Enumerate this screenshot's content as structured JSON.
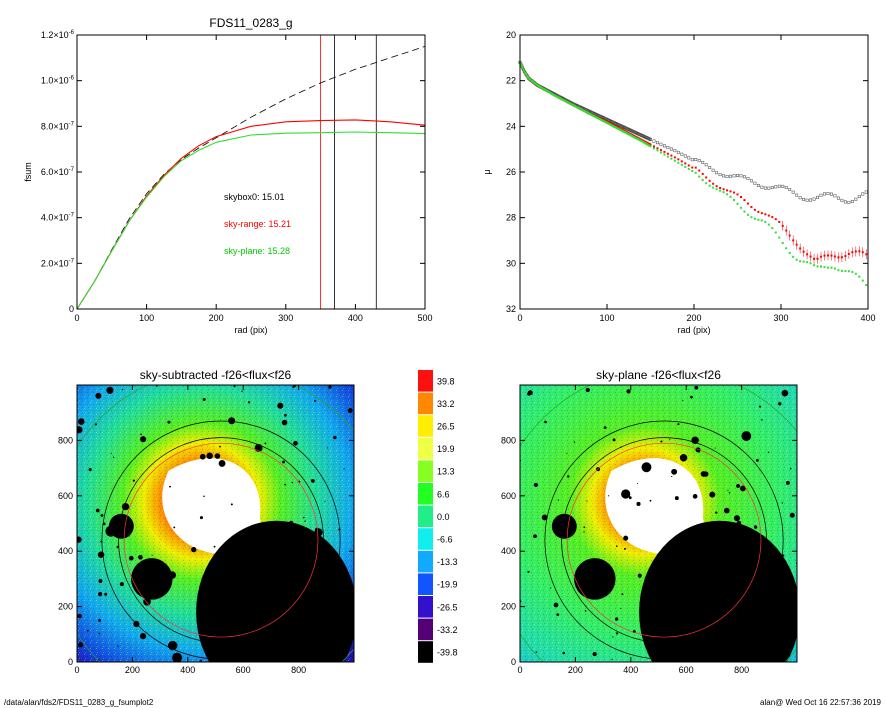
{
  "footer": {
    "path": "/data/alan/fds2/FDS11_0283_g_fsumplot2",
    "stamp": "alan@  Wed Oct 16 22:57:36 2019"
  },
  "chart_data": [
    {
      "type": "line",
      "title": "FDS11_0283_g",
      "xlabel": "rad (pix)",
      "ylabel": "fsum",
      "xlim": [
        0,
        500
      ],
      "ylim": [
        0,
        1.2e-06
      ],
      "xticks": [
        "0",
        "100",
        "200",
        "300",
        "400",
        "500"
      ],
      "yticks": [
        {
          "m": "0",
          "e": ""
        },
        {
          "m": "2.0×10",
          "e": "-7"
        },
        {
          "m": "4.0×10",
          "e": "-7"
        },
        {
          "m": "6.0×10",
          "e": "-7"
        },
        {
          "m": "8.0×10",
          "e": "-7"
        },
        {
          "m": "1.0×10",
          "e": "-6"
        },
        {
          "m": "1.2×10",
          "e": "-6"
        }
      ],
      "annotations": [
        {
          "text": "skybox0: 15.01",
          "color": "#000000"
        },
        {
          "text": "sky-range: 15.21",
          "color": "#ff0000"
        },
        {
          "text": "sky-plane: 15.28",
          "color": "#00cc00"
        }
      ],
      "vlines": [
        {
          "x": 350,
          "color": "#ff0000"
        },
        {
          "x": 370,
          "color": "#000000"
        },
        {
          "x": 430,
          "color": "#000000"
        }
      ],
      "series": [
        {
          "color": "#000000",
          "dash": true,
          "x": [
            0,
            25,
            50,
            75,
            100,
            125,
            150,
            175,
            200,
            250,
            300,
            350,
            400,
            450,
            500
          ],
          "y": [
            0,
            1.2e-07,
            2.6e-07,
            3.95e-07,
            5.05e-07,
            5.9e-07,
            6.55e-07,
            7.05e-07,
            7.5e-07,
            8.4e-07,
            9.2e-07,
            9.9e-07,
            1.05e-06,
            1.1e-06,
            1.15e-06
          ]
        },
        {
          "color": "#ff0000",
          "dash": false,
          "x": [
            0,
            25,
            50,
            75,
            100,
            125,
            150,
            175,
            200,
            250,
            300,
            350,
            400,
            450,
            500
          ],
          "y": [
            0,
            1.2e-07,
            2.55e-07,
            3.85e-07,
            4.95e-07,
            5.85e-07,
            6.6e-07,
            7.15e-07,
            7.55e-07,
            8e-07,
            8.2e-07,
            8.25e-07,
            8.28e-07,
            8.2e-07,
            8.05e-07
          ]
        },
        {
          "color": "#33dd33",
          "dash": false,
          "x": [
            0,
            25,
            50,
            75,
            100,
            125,
            150,
            175,
            200,
            250,
            300,
            350,
            400,
            450,
            500
          ],
          "y": [
            0,
            1.2e-07,
            2.55e-07,
            3.85e-07,
            4.9e-07,
            5.8e-07,
            6.5e-07,
            6.95e-07,
            7.3e-07,
            7.62e-07,
            7.7e-07,
            7.72e-07,
            7.75e-07,
            7.72e-07,
            7.68e-07
          ]
        }
      ]
    },
    {
      "type": "scatter",
      "xlabel": "rad (pix)",
      "ylabel": "μ",
      "xlim": [
        0,
        400
      ],
      "ylim": [
        32,
        20
      ],
      "xticks": [
        "0",
        "100",
        "200",
        "300",
        "400"
      ],
      "yticks": [
        "20",
        "22",
        "24",
        "26",
        "28",
        "30",
        "32"
      ],
      "series": [
        {
          "color": "#444444",
          "open": true,
          "x": [
            0,
            5,
            10,
            20,
            40,
            60,
            80,
            100,
            120,
            140,
            160,
            180,
            200,
            220,
            240,
            260,
            280,
            300,
            320,
            340,
            360,
            380,
            400
          ],
          "y": [
            21.2,
            21.6,
            21.9,
            22.2,
            22.6,
            23.0,
            23.35,
            23.7,
            24.05,
            24.4,
            24.75,
            25.1,
            25.5,
            25.85,
            26.15,
            26.35,
            26.55,
            26.75,
            27.0,
            27.15,
            27.1,
            27.15,
            27.05
          ]
        },
        {
          "color": "#ff0000",
          "open": false,
          "x": [
            0,
            5,
            10,
            20,
            40,
            60,
            80,
            100,
            120,
            140,
            160,
            180,
            200,
            220,
            240,
            260,
            280,
            300,
            320,
            340,
            360,
            380,
            400
          ],
          "y": [
            21.2,
            21.6,
            21.9,
            22.2,
            22.65,
            23.05,
            23.45,
            23.8,
            24.2,
            24.6,
            25.0,
            25.4,
            25.85,
            26.35,
            26.9,
            27.3,
            27.75,
            28.4,
            29.1,
            30.0,
            29.6,
            29.5,
            29.8
          ]
        },
        {
          "color": "#33dd33",
          "open": false,
          "x": [
            0,
            5,
            10,
            20,
            40,
            60,
            80,
            100,
            120,
            140,
            160,
            180,
            200,
            220,
            240,
            260,
            280,
            300,
            320,
            340,
            360,
            380,
            400
          ],
          "y": [
            21.2,
            21.6,
            21.9,
            22.2,
            22.65,
            23.05,
            23.45,
            23.85,
            24.25,
            24.65,
            25.1,
            25.55,
            26.0,
            26.55,
            27.15,
            27.7,
            28.2,
            29.0,
            29.8,
            30.3,
            30.0,
            30.5,
            31.0
          ]
        }
      ]
    },
    {
      "type": "heatmap",
      "title": "sky-subtracted -f26<flux<f26",
      "xlim": [
        0,
        1000
      ],
      "ylim": [
        0,
        1000
      ],
      "xticks": [
        "0",
        "200",
        "400",
        "600",
        "800"
      ],
      "yticks": [
        "0",
        "200",
        "400",
        "600",
        "800"
      ],
      "annular_radii": [
        350,
        370,
        430
      ]
    },
    {
      "type": "heatmap",
      "title": "sky-plane -f26<flux<f26",
      "xlim": [
        0,
        1000
      ],
      "ylim": [
        0,
        1000
      ],
      "xticks": [
        "0",
        "200",
        "400",
        "600",
        "800"
      ],
      "yticks": [
        "0",
        "200",
        "400",
        "600",
        "800"
      ],
      "annular_radii": [
        350,
        370,
        430
      ]
    }
  ],
  "colorbar": {
    "labels": [
      "39.8",
      "33.2",
      "26.5",
      "19.9",
      "13.3",
      "6.6",
      "0.0",
      "-6.6",
      "-13.3",
      "-19.9",
      "-26.5",
      "-33.2",
      "-39.8"
    ],
    "colors": [
      "#ff1010",
      "#ff8800",
      "#ffee00",
      "#eeff44",
      "#88ff22",
      "#22ff22",
      "#22ee88",
      "#11eeee",
      "#11aaff",
      "#1155ff",
      "#3311cc",
      "#550077",
      "#000000"
    ]
  }
}
